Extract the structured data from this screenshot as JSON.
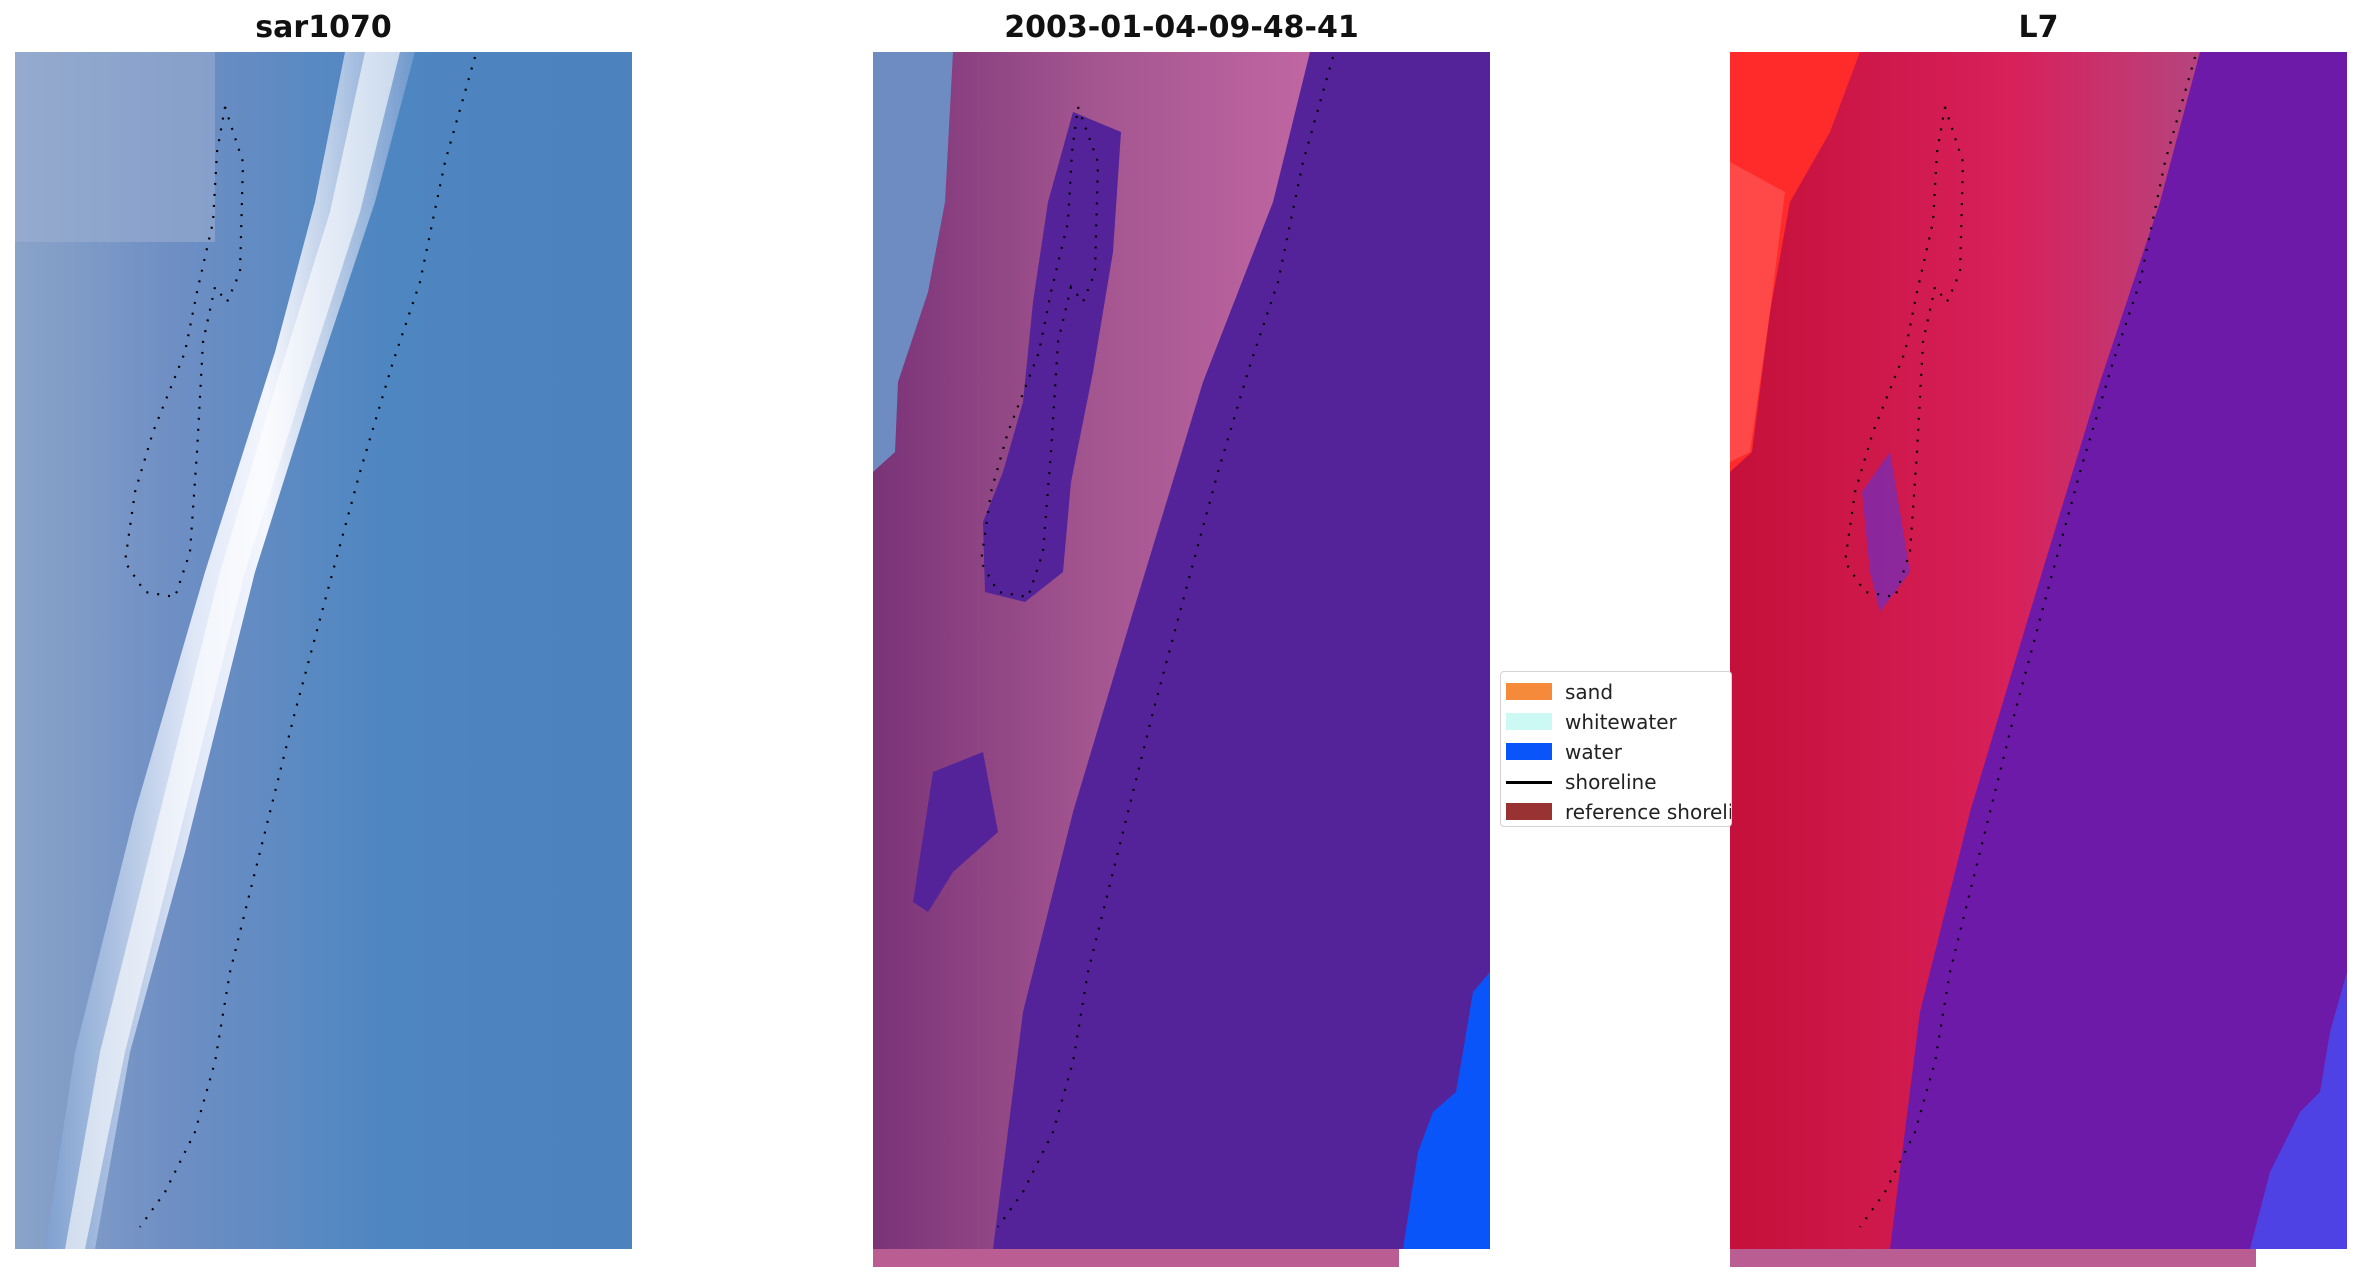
{
  "panels": [
    {
      "title": "sar1070"
    },
    {
      "title": "2003-01-04-09-48-41"
    },
    {
      "title": "L7"
    }
  ],
  "legend": {
    "items": [
      {
        "label": "sand",
        "kind": "patch",
        "color": "#f58b3a"
      },
      {
        "label": "whitewater",
        "kind": "patch",
        "color": "#ccf9f4"
      },
      {
        "label": "water",
        "kind": "patch",
        "color": "#0a55fa"
      },
      {
        "label": "shoreline",
        "kind": "line",
        "color": "#000000"
      },
      {
        "label": "reference shoreline",
        "kind": "patch",
        "color": "#993333"
      }
    ]
  },
  "colors": {
    "rgb_water": "#4f84c0",
    "rgb_whitewater": "#eef1fb",
    "class_purple": "#54239a",
    "class_pink": "#b35a96",
    "class_blue": "#0a55fa",
    "swir_red": "#d11a3f",
    "swir_bright_red": "#ff2020",
    "swir_purple": "#6d1aa8",
    "reference_band": "#b95d92"
  }
}
